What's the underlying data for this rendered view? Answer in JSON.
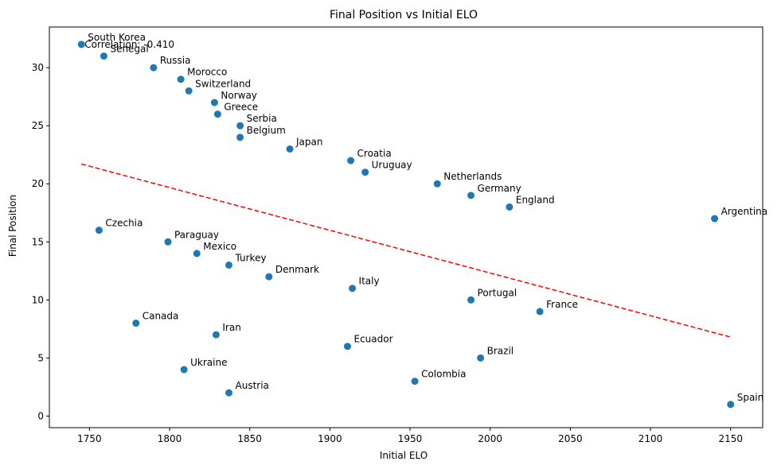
{
  "chart_data": {
    "type": "scatter",
    "title": "Final Position vs Initial ELO",
    "xlabel": "Initial ELO",
    "ylabel": "Final Position",
    "xlim": [
      1725,
      2170
    ],
    "ylim": [
      -1,
      33.5
    ],
    "xticks": [
      1750,
      1800,
      1850,
      1900,
      1950,
      2000,
      2050,
      2100,
      2150
    ],
    "yticks": [
      0,
      5,
      10,
      15,
      20,
      25,
      30
    ],
    "point_color": "#1f77b4",
    "trend_color": "#ff0000",
    "grid": false,
    "annotation": "Correlation: -0.410",
    "points": [
      {
        "label": "South Korea",
        "x": 1745,
        "y": 32
      },
      {
        "label": "Senegal",
        "x": 1759,
        "y": 31
      },
      {
        "label": "Russia",
        "x": 1790,
        "y": 30
      },
      {
        "label": "Morocco",
        "x": 1807,
        "y": 29
      },
      {
        "label": "Switzerland",
        "x": 1812,
        "y": 28
      },
      {
        "label": "Norway",
        "x": 1828,
        "y": 27
      },
      {
        "label": "Greece",
        "x": 1830,
        "y": 26
      },
      {
        "label": "Serbia",
        "x": 1844,
        "y": 25
      },
      {
        "label": "Belgium",
        "x": 1844,
        "y": 24
      },
      {
        "label": "Japan",
        "x": 1875,
        "y": 23
      },
      {
        "label": "Croatia",
        "x": 1913,
        "y": 22
      },
      {
        "label": "Uruguay",
        "x": 1922,
        "y": 21
      },
      {
        "label": "Netherlands",
        "x": 1967,
        "y": 20
      },
      {
        "label": "Germany",
        "x": 1988,
        "y": 19
      },
      {
        "label": "England",
        "x": 2012,
        "y": 18
      },
      {
        "label": "Argentina",
        "x": 2140,
        "y": 17
      },
      {
        "label": "Czechia",
        "x": 1756,
        "y": 16
      },
      {
        "label": "Paraguay",
        "x": 1799,
        "y": 15
      },
      {
        "label": "Mexico",
        "x": 1817,
        "y": 14
      },
      {
        "label": "Turkey",
        "x": 1837,
        "y": 13
      },
      {
        "label": "Denmark",
        "x": 1862,
        "y": 12
      },
      {
        "label": "Italy",
        "x": 1914,
        "y": 11
      },
      {
        "label": "Portugal",
        "x": 1988,
        "y": 10
      },
      {
        "label": "France",
        "x": 2031,
        "y": 9
      },
      {
        "label": "Canada",
        "x": 1779,
        "y": 8
      },
      {
        "label": "Iran",
        "x": 1829,
        "y": 7
      },
      {
        "label": "Ecuador",
        "x": 1911,
        "y": 6
      },
      {
        "label": "Brazil",
        "x": 1994,
        "y": 5
      },
      {
        "label": "Ukraine",
        "x": 1809,
        "y": 4
      },
      {
        "label": "Colombia",
        "x": 1953,
        "y": 3
      },
      {
        "label": "Austria",
        "x": 1837,
        "y": 2
      },
      {
        "label": "Spain",
        "x": 2150,
        "y": 1
      }
    ],
    "trend_line": {
      "x": [
        1745,
        2150
      ],
      "y": [
        21.7,
        6.8
      ]
    }
  }
}
